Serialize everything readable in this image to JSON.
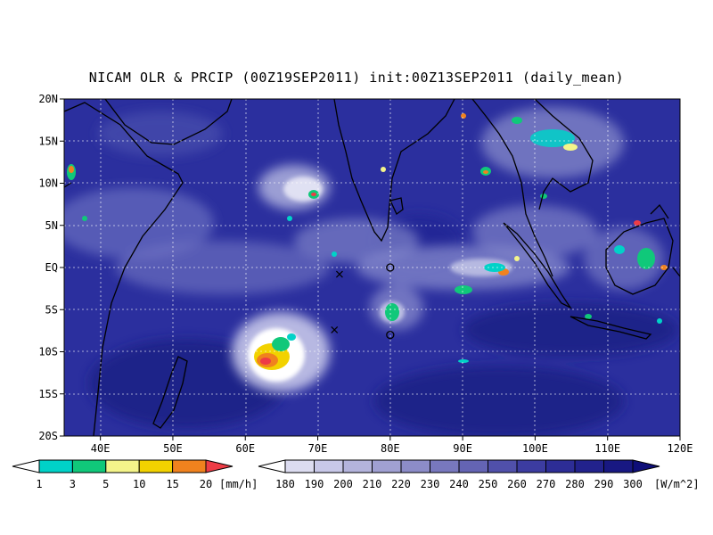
{
  "title": "NICAM OLR & PRCIP (00Z19SEP2011) init:00Z13SEP2011 (daily_mean)",
  "map": {
    "lon_range": [
      35,
      120
    ],
    "lat_range": [
      -20,
      20
    ],
    "lat_ticks": [
      "20N",
      "15N",
      "10N",
      "5N",
      "EQ",
      "5S",
      "10S",
      "15S",
      "20S"
    ],
    "lat_values": [
      20,
      15,
      10,
      5,
      0,
      -5,
      -10,
      -15,
      -20
    ],
    "lon_ticks": [
      "40E",
      "50E",
      "60E",
      "70E",
      "80E",
      "90E",
      "100E",
      "110E",
      "120E"
    ],
    "lon_values": [
      40,
      50,
      60,
      70,
      80,
      90,
      100,
      110,
      120
    ],
    "grid": true,
    "ocean_color": "#2b2f9e",
    "markers": [
      {
        "symbol": "x",
        "lon": 73,
        "lat": -0.8
      },
      {
        "symbol": "x",
        "lon": 72.3,
        "lat": -7.4
      },
      {
        "symbol": "o",
        "lon": 80,
        "lat": 0
      },
      {
        "symbol": "o",
        "lon": 80,
        "lat": -8
      }
    ]
  },
  "precip_colorbar": {
    "labels": [
      "1",
      "3",
      "5",
      "10",
      "15",
      "20"
    ],
    "unit": "[mm/h]",
    "colors": [
      "#ffffff",
      "#00d2c8",
      "#10c87a",
      "#f4f48a",
      "#f2d200",
      "#f0821e",
      "#ee3c46"
    ]
  },
  "olr_colorbar": {
    "labels": [
      "180",
      "190",
      "200",
      "210",
      "220",
      "230",
      "240",
      "250",
      "260",
      "270",
      "280",
      "290",
      "300"
    ],
    "unit": "[W/m^2]",
    "colors": [
      "#ffffff",
      "#dcdcf0",
      "#c8c8e8",
      "#b4b4dc",
      "#a0a0d2",
      "#8c8cc8",
      "#7878be",
      "#6464b4",
      "#5050aa",
      "#3c3ca0",
      "#2d2d96",
      "#22228c",
      "#181882",
      "#0e0e78"
    ]
  }
}
